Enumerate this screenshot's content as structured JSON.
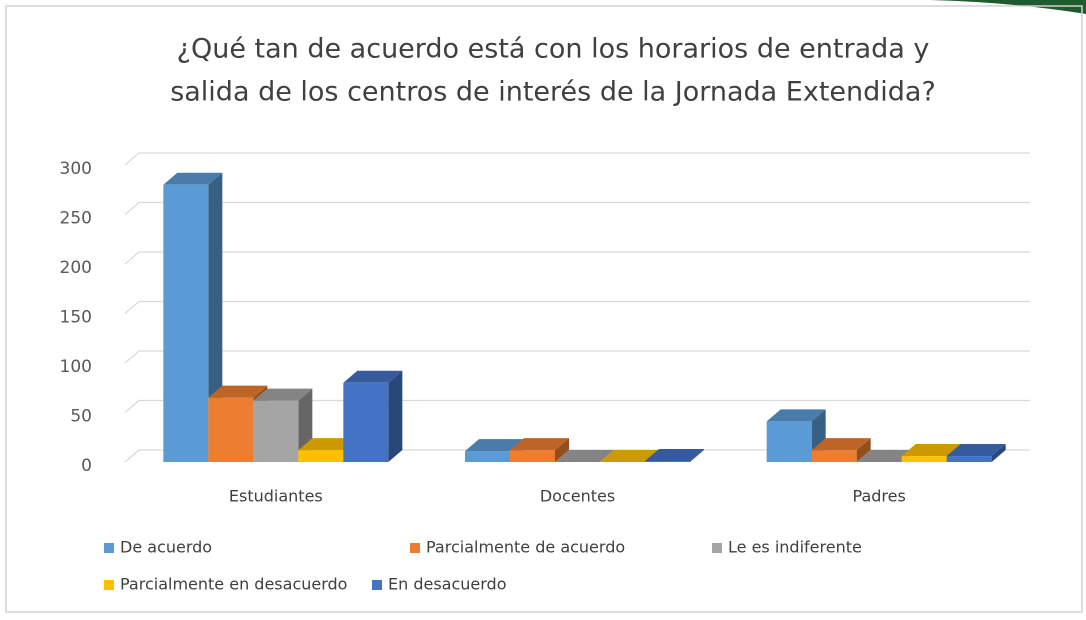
{
  "chart_data": {
    "type": "bar3d",
    "title": [
      "¿Qué tan de acuerdo está con los horarios de entrada y",
      "salida de los centros de interés de la Jornada Extendida?"
    ],
    "categories": [
      "Estudiantes",
      "Docentes",
      "Padres"
    ],
    "series": [
      {
        "name": "De acuerdo",
        "color": "#5b9bd5",
        "values": [
          280,
          11,
          41
        ]
      },
      {
        "name": "Parcialmente de acuerdo",
        "color": "#ed7d31",
        "values": [
          65,
          12,
          12
        ]
      },
      {
        "name": "Le es indiferente",
        "color": "#a5a5a5",
        "values": [
          62,
          0,
          0
        ]
      },
      {
        "name": "Parcialmente en desacuerdo",
        "color": "#ffc000",
        "values": [
          12,
          0,
          6
        ]
      },
      {
        "name": "En desacuerdo",
        "color": "#4472c4",
        "values": [
          80,
          1,
          6
        ]
      }
    ],
    "ylim": [
      0,
      300
    ],
    "yticks": [
      0,
      50,
      100,
      150,
      200,
      250,
      300
    ],
    "grid": true,
    "legend": "bottom"
  }
}
